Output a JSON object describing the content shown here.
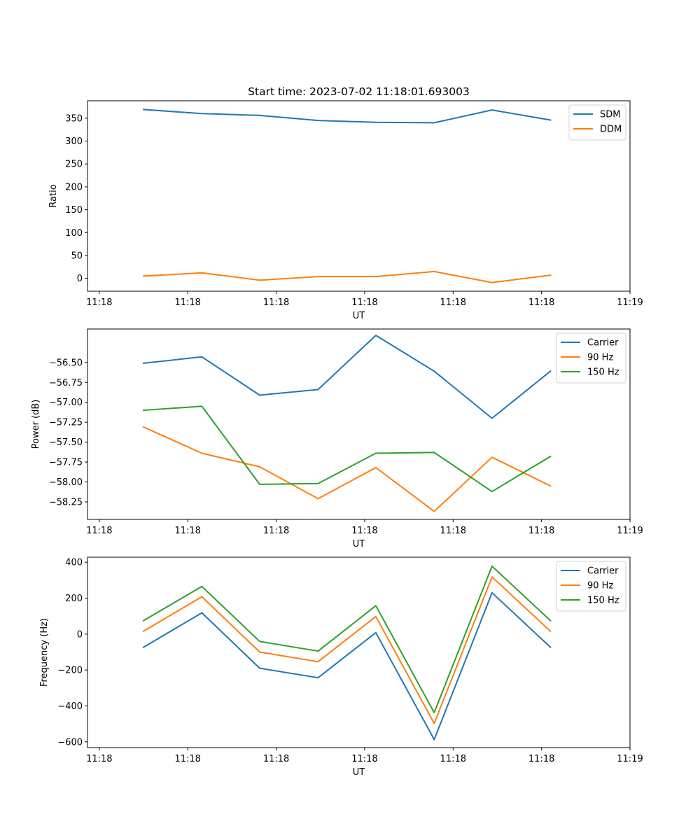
{
  "figure": {
    "title": "Start time: 2023-07-02 11:18:01.693003"
  },
  "chart_data": [
    {
      "type": "line",
      "xlabel": "UT",
      "ylabel": "Ratio",
      "xlim": [
        -0.2,
        9.0
      ],
      "ylim": [
        -28,
        388
      ],
      "x": [
        0.75,
        1.74,
        2.72,
        3.71,
        4.69,
        5.68,
        6.66,
        7.65
      ],
      "xticks": [
        0,
        1.5,
        3,
        4.5,
        6,
        7.5,
        9
      ],
      "xtick_labels": [
        "11:18",
        "11:18",
        "11:18",
        "11:18",
        "11:18",
        "11:18",
        "11:19"
      ],
      "yticks": [
        0,
        50,
        100,
        150,
        200,
        250,
        300,
        350
      ],
      "ytick_labels": [
        "0",
        "50",
        "100",
        "150",
        "200",
        "250",
        "300",
        "350"
      ],
      "legend": "top-right",
      "series": [
        {
          "name": "SDM",
          "color": "#1f77b4",
          "values": [
            369,
            360,
            356,
            345,
            341,
            340,
            368,
            346
          ]
        },
        {
          "name": "DDM",
          "color": "#ff7f0e",
          "values": [
            5,
            12,
            -4,
            4,
            4,
            15,
            -9,
            7
          ]
        }
      ]
    },
    {
      "type": "line",
      "xlabel": "UT",
      "ylabel": "Power (dB)",
      "xlim": [
        -0.2,
        9.0
      ],
      "ylim": [
        -58.47,
        -56.08
      ],
      "x": [
        0.75,
        1.74,
        2.72,
        3.71,
        4.69,
        5.68,
        6.66,
        7.65
      ],
      "xticks": [
        0,
        1.5,
        3,
        4.5,
        6,
        7.5,
        9
      ],
      "xtick_labels": [
        "11:18",
        "11:18",
        "11:18",
        "11:18",
        "11:18",
        "11:18",
        "11:19"
      ],
      "yticks": [
        -58.25,
        -58.0,
        -57.75,
        -57.5,
        -57.25,
        -57.0,
        -56.75,
        -56.5
      ],
      "ytick_labels": [
        "−58.25",
        "−58.00",
        "−57.75",
        "−57.50",
        "−57.25",
        "−57.00",
        "−56.75",
        "−56.50"
      ],
      "legend": "top-right",
      "series": [
        {
          "name": "Carrier",
          "color": "#1f77b4",
          "values": [
            -56.51,
            -56.43,
            -56.91,
            -56.84,
            -56.16,
            -56.61,
            -57.2,
            -56.61
          ]
        },
        {
          "name": "90 Hz",
          "color": "#ff7f0e",
          "values": [
            -57.31,
            -57.64,
            -57.81,
            -58.21,
            -57.82,
            -58.37,
            -57.69,
            -58.05
          ]
        },
        {
          "name": "150 Hz",
          "color": "#2ca02c",
          "values": [
            -57.1,
            -57.05,
            -58.03,
            -58.02,
            -57.64,
            -57.63,
            -58.12,
            -57.68
          ]
        }
      ]
    },
    {
      "type": "line",
      "xlabel": "UT",
      "ylabel": "Frequency (Hz)",
      "xlim": [
        -0.2,
        9.0
      ],
      "ylim": [
        -632,
        428
      ],
      "x": [
        0.75,
        1.74,
        2.72,
        3.71,
        4.69,
        5.68,
        6.66,
        7.65
      ],
      "xticks": [
        0,
        1.5,
        3,
        4.5,
        6,
        7.5,
        9
      ],
      "xtick_labels": [
        "11:18",
        "11:18",
        "11:18",
        "11:18",
        "11:18",
        "11:18",
        "11:19"
      ],
      "yticks": [
        -600,
        -400,
        -200,
        0,
        200,
        400
      ],
      "ytick_labels": [
        "−600",
        "−400",
        "−200",
        "0",
        "200",
        "400"
      ],
      "legend": "top-right",
      "series": [
        {
          "name": "Carrier",
          "color": "#1f77b4",
          "values": [
            -73,
            118,
            -190,
            -243,
            8,
            -587,
            230,
            -73
          ]
        },
        {
          "name": "90 Hz",
          "color": "#ff7f0e",
          "values": [
            16,
            208,
            -100,
            -154,
            98,
            -497,
            318,
            16
          ]
        },
        {
          "name": "150 Hz",
          "color": "#2ca02c",
          "values": [
            75,
            265,
            -41,
            -95,
            158,
            -437,
            378,
            75
          ]
        }
      ]
    }
  ]
}
